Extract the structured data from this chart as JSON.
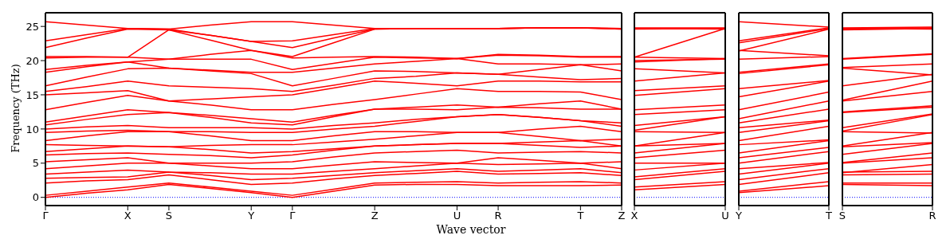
{
  "chart_data": [
    {
      "type": "line",
      "ylabel": "Frequency (THz)",
      "xlabel": "Wave vector",
      "ylim": [
        -1.2,
        27
      ],
      "yticks": [
        0,
        5,
        10,
        15,
        20,
        25
      ],
      "categories": [
        "Γ",
        null,
        "X",
        "S",
        null,
        "Y",
        "Γ",
        null,
        "Z",
        null,
        "U",
        "R",
        null,
        "T",
        "Z"
      ],
      "marker": "none",
      "line_style": "solid",
      "ref_lines": [
        {
          "axis": "y",
          "value": 0,
          "color": "#0000ff",
          "line_style": "dotted"
        }
      ],
      "series": [
        {
          "color": "#ff0000",
          "values": [
            0,
            0.6,
            1.1,
            1.9,
            1.3,
            0.7,
            0,
            0.9,
            1.8,
            1.9,
            1.9,
            1.7,
            1.7,
            1.7,
            1.8
          ]
        },
        {
          "color": "#ff0000",
          "values": [
            0.3,
            0.9,
            1.5,
            2.1,
            1.5,
            0.9,
            0.3,
            1.2,
            2.1,
            2.2,
            2.3,
            2.1,
            2.2,
            2.3,
            2.1
          ]
        },
        {
          "color": "#ff0000",
          "values": [
            2.1,
            2.4,
            2.6,
            3.3,
            2.6,
            1.9,
            2.1,
            2.7,
            3.2,
            3.5,
            3.8,
            3.4,
            3.5,
            3.6,
            3.2
          ]
        },
        {
          "color": "#ff0000",
          "values": [
            2.8,
            2.9,
            3.0,
            3.7,
            3.2,
            2.6,
            2.8,
            3.2,
            3.6,
            3.9,
            4.2,
            3.8,
            4.0,
            4.2,
            3.6
          ]
        },
        {
          "color": "#ff0000",
          "values": [
            3.4,
            3.7,
            4.0,
            3.7,
            3.6,
            3.4,
            3.4,
            3.8,
            4.2,
            4.6,
            5.0,
            4.8,
            4.9,
            5.0,
            4.2
          ]
        },
        {
          "color": "#ff0000",
          "values": [
            4.2,
            4.6,
            5.0,
            5.0,
            4.6,
            4.2,
            4.2,
            4.7,
            5.2,
            5.1,
            5.0,
            5.8,
            5.4,
            5.0,
            5.2
          ]
        },
        {
          "color": "#ff0000",
          "values": [
            5.2,
            5.5,
            5.8,
            5.0,
            5.0,
            5.0,
            5.2,
            5.9,
            6.5,
            6.7,
            6.9,
            6.5,
            6.6,
            6.7,
            6.5
          ]
        },
        {
          "color": "#ff0000",
          "values": [
            6.2,
            6.4,
            6.5,
            6.3,
            6.1,
            5.8,
            6.2,
            6.9,
            7.5,
            7.7,
            7.9,
            7.9,
            7.6,
            7.3,
            7.5
          ]
        },
        {
          "color": "#ff0000",
          "values": [
            6.7,
            7.1,
            7.5,
            7.4,
            7.0,
            6.5,
            6.7,
            7.1,
            7.5,
            7.7,
            7.9,
            7.9,
            8.1,
            8.3,
            7.5
          ]
        },
        {
          "color": "#ff0000",
          "values": [
            7.7,
            7.6,
            7.5,
            7.4,
            7.6,
            7.7,
            7.7,
            8.1,
            8.5,
            9.0,
            9.5,
            9.5,
            8.9,
            8.3,
            8.5
          ]
        },
        {
          "color": "#ff0000",
          "values": [
            8.3,
            9.0,
            9.6,
            9.6,
            9.0,
            8.3,
            8.3,
            9.0,
            9.6,
            9.6,
            9.5,
            9.5,
            10.0,
            10.4,
            9.6
          ]
        },
        {
          "color": "#ff0000",
          "values": [
            9.5,
            9.7,
            9.8,
            9.6,
            9.6,
            9.5,
            9.5,
            10.0,
            10.4,
            11.1,
            11.8,
            12.1,
            11.7,
            11.2,
            10.4
          ]
        },
        {
          "color": "#ff0000",
          "values": [
            10.0,
            10.3,
            10.5,
            10.2,
            10.2,
            10.2,
            10.0,
            10.5,
            10.9,
            11.4,
            11.8,
            12.1,
            11.7,
            11.2,
            10.9
          ]
        },
        {
          "color": "#ff0000",
          "values": [
            10.6,
            11.4,
            12.1,
            12.4,
            11.7,
            10.9,
            10.6,
            11.8,
            12.9,
            12.9,
            12.8,
            13.2,
            13.1,
            12.9,
            12.9
          ]
        },
        {
          "color": "#ff0000",
          "values": [
            11.0,
            11.9,
            12.8,
            12.4,
            12.0,
            11.5,
            11.0,
            12.0,
            12.9,
            13.2,
            13.5,
            13.2,
            13.7,
            14.1,
            12.9
          ]
        },
        {
          "color": "#ff0000",
          "values": [
            12.8,
            13.9,
            14.9,
            14.1,
            13.5,
            12.8,
            12.8,
            13.6,
            14.3,
            15.1,
            15.9,
            15.5,
            15.5,
            15.4,
            14.3
          ]
        },
        {
          "color": "#ff0000",
          "values": [
            15.0,
            15.3,
            15.6,
            14.1,
            14.4,
            14.7,
            15.0,
            16.0,
            17.0,
            16.7,
            16.3,
            17.0,
            17.0,
            16.9,
            16.9
          ]
        },
        {
          "color": "#ff0000",
          "values": [
            15.5,
            16.2,
            17.0,
            16.3,
            16.1,
            15.9,
            15.5,
            16.4,
            17.4,
            17.7,
            18.2,
            18.0,
            17.6,
            17.2,
            17.4
          ]
        },
        {
          "color": "#ff0000",
          "values": [
            16.3,
            17.6,
            18.8,
            18.9,
            18.5,
            18.1,
            16.3,
            17.4,
            18.5,
            18.4,
            18.2,
            18.0,
            18.7,
            19.4,
            18.5
          ]
        },
        {
          "color": "#ff0000",
          "values": [
            18.3,
            19.1,
            19.8,
            18.9,
            18.6,
            18.3,
            18.3,
            18.9,
            19.5,
            19.9,
            20.3,
            19.5,
            19.5,
            19.4,
            19.5
          ]
        },
        {
          "color": "#ff0000",
          "values": [
            18.7,
            19.3,
            19.8,
            20.2,
            20.2,
            20.2,
            18.7,
            19.6,
            20.5,
            20.4,
            20.3,
            20.8,
            20.7,
            20.5,
            20.5
          ]
        },
        {
          "color": "#ff0000",
          "values": [
            20.4,
            20.5,
            20.5,
            20.2,
            20.9,
            21.5,
            20.4,
            20.5,
            20.6,
            20.5,
            20.3,
            20.9,
            20.8,
            20.6,
            20.6
          ]
        },
        {
          "color": "#ff0000",
          "values": [
            20.6,
            20.6,
            20.5,
            24.5,
            23.0,
            21.5,
            20.6,
            22.6,
            24.6,
            24.7,
            24.7,
            24.7,
            24.8,
            24.8,
            24.6
          ]
        },
        {
          "color": "#ff0000",
          "values": [
            21.9,
            23.3,
            24.6,
            24.5,
            23.7,
            22.8,
            21.9,
            23.3,
            24.6,
            24.7,
            24.7,
            24.7,
            24.8,
            24.8,
            24.6
          ]
        },
        {
          "color": "#ff0000",
          "values": [
            22.9,
            23.8,
            24.7,
            24.6,
            23.7,
            22.8,
            22.9,
            23.8,
            24.7,
            24.7,
            24.7,
            24.7,
            24.8,
            24.8,
            24.7
          ]
        },
        {
          "color": "#ff0000",
          "values": [
            25.7,
            25.2,
            24.7,
            24.6,
            25.2,
            25.7,
            25.7,
            25.2,
            24.7,
            24.7,
            24.7,
            24.7,
            24.8,
            24.8,
            24.7
          ]
        }
      ]
    },
    {
      "type": "line",
      "ylim": [
        -1.2,
        27
      ],
      "yticks": [
        0,
        5,
        10,
        15,
        20,
        25
      ],
      "categories": [
        "X",
        "U"
      ],
      "tick_labels": "x",
      "marker": "none",
      "line_style": "solid",
      "ref_lines": [
        {
          "axis": "y",
          "value": 0,
          "color": "#0000ff",
          "line_style": "dotted"
        }
      ],
      "series": [
        {
          "color": "#ff0000",
          "values": [
            1.1,
            1.9
          ]
        },
        {
          "color": "#ff0000",
          "values": [
            1.5,
            2.3
          ]
        },
        {
          "color": "#ff0000",
          "values": [
            2.6,
            3.8
          ]
        },
        {
          "color": "#ff0000",
          "values": [
            3.0,
            4.2
          ]
        },
        {
          "color": "#ff0000",
          "values": [
            4.0,
            5.0
          ]
        },
        {
          "color": "#ff0000",
          "values": [
            5.0,
            5.0
          ]
        },
        {
          "color": "#ff0000",
          "values": [
            5.8,
            6.9
          ]
        },
        {
          "color": "#ff0000",
          "values": [
            6.5,
            7.9
          ]
        },
        {
          "color": "#ff0000",
          "values": [
            7.5,
            7.9
          ]
        },
        {
          "color": "#ff0000",
          "values": [
            7.5,
            9.5
          ]
        },
        {
          "color": "#ff0000",
          "values": [
            9.6,
            9.5
          ]
        },
        {
          "color": "#ff0000",
          "values": [
            9.8,
            11.8
          ]
        },
        {
          "color": "#ff0000",
          "values": [
            10.5,
            11.8
          ]
        },
        {
          "color": "#ff0000",
          "values": [
            12.1,
            12.8
          ]
        },
        {
          "color": "#ff0000",
          "values": [
            12.8,
            13.5
          ]
        },
        {
          "color": "#ff0000",
          "values": [
            14.9,
            15.9
          ]
        },
        {
          "color": "#ff0000",
          "values": [
            15.6,
            16.3
          ]
        },
        {
          "color": "#ff0000",
          "values": [
            17.0,
            18.2
          ]
        },
        {
          "color": "#ff0000",
          "values": [
            18.8,
            18.2
          ]
        },
        {
          "color": "#ff0000",
          "values": [
            19.8,
            20.3
          ]
        },
        {
          "color": "#ff0000",
          "values": [
            20.0,
            20.2
          ]
        },
        {
          "color": "#ff0000",
          "values": [
            20.5,
            20.3
          ]
        },
        {
          "color": "#ff0000",
          "values": [
            20.5,
            24.7
          ]
        },
        {
          "color": "#ff0000",
          "values": [
            24.6,
            24.7
          ]
        },
        {
          "color": "#ff0000",
          "values": [
            24.7,
            24.6
          ]
        },
        {
          "color": "#ff0000",
          "values": [
            24.8,
            24.8
          ]
        }
      ]
    },
    {
      "type": "line",
      "ylim": [
        -1.2,
        27
      ],
      "yticks": [
        0,
        5,
        10,
        15,
        20,
        25
      ],
      "categories": [
        "Y",
        "T"
      ],
      "tick_labels": "x",
      "marker": "none",
      "line_style": "solid",
      "ref_lines": [
        {
          "axis": "y",
          "value": 0,
          "color": "#0000ff",
          "line_style": "dotted"
        }
      ],
      "series": [
        {
          "color": "#ff0000",
          "values": [
            0.7,
            1.7
          ]
        },
        {
          "color": "#ff0000",
          "values": [
            0.9,
            2.3
          ]
        },
        {
          "color": "#ff0000",
          "values": [
            1.9,
            3.6
          ]
        },
        {
          "color": "#ff0000",
          "values": [
            2.6,
            4.2
          ]
        },
        {
          "color": "#ff0000",
          "values": [
            3.4,
            5.0
          ]
        },
        {
          "color": "#ff0000",
          "values": [
            4.2,
            5.1
          ]
        },
        {
          "color": "#ff0000",
          "values": [
            5.0,
            6.7
          ]
        },
        {
          "color": "#ff0000",
          "values": [
            5.8,
            7.3
          ]
        },
        {
          "color": "#ff0000",
          "values": [
            6.5,
            8.3
          ]
        },
        {
          "color": "#ff0000",
          "values": [
            7.7,
            8.4
          ]
        },
        {
          "color": "#ff0000",
          "values": [
            8.3,
            10.4
          ]
        },
        {
          "color": "#ff0000",
          "values": [
            9.5,
            11.2
          ]
        },
        {
          "color": "#ff0000",
          "values": [
            10.2,
            11.3
          ]
        },
        {
          "color": "#ff0000",
          "values": [
            10.9,
            12.9
          ]
        },
        {
          "color": "#ff0000",
          "values": [
            11.5,
            14.1
          ]
        },
        {
          "color": "#ff0000",
          "values": [
            12.8,
            15.4
          ]
        },
        {
          "color": "#ff0000",
          "values": [
            14.7,
            17.0
          ]
        },
        {
          "color": "#ff0000",
          "values": [
            15.9,
            17.1
          ]
        },
        {
          "color": "#ff0000",
          "values": [
            18.1,
            19.4
          ]
        },
        {
          "color": "#ff0000",
          "values": [
            18.3,
            19.5
          ]
        },
        {
          "color": "#ff0000",
          "values": [
            20.2,
            20.6
          ]
        },
        {
          "color": "#ff0000",
          "values": [
            21.5,
            20.7
          ]
        },
        {
          "color": "#ff0000",
          "values": [
            21.4,
            24.6
          ]
        },
        {
          "color": "#ff0000",
          "values": [
            22.6,
            24.7
          ]
        },
        {
          "color": "#ff0000",
          "values": [
            22.9,
            24.8
          ]
        },
        {
          "color": "#ff0000",
          "values": [
            25.7,
            24.9
          ]
        }
      ]
    },
    {
      "type": "line",
      "ylim": [
        -1.2,
        27
      ],
      "yticks": [
        0,
        5,
        10,
        15,
        20,
        25
      ],
      "categories": [
        "S",
        "R"
      ],
      "tick_labels": "x",
      "marker": "none",
      "line_style": "solid",
      "ref_lines": [
        {
          "axis": "y",
          "value": 0,
          "color": "#0000ff",
          "line_style": "dotted"
        }
      ],
      "series": [
        {
          "color": "#ff0000",
          "values": [
            1.9,
            1.7
          ]
        },
        {
          "color": "#ff0000",
          "values": [
            2.1,
            2.1
          ]
        },
        {
          "color": "#ff0000",
          "values": [
            3.3,
            3.4
          ]
        },
        {
          "color": "#ff0000",
          "values": [
            3.7,
            3.8
          ]
        },
        {
          "color": "#ff0000",
          "values": [
            3.6,
            4.8
          ]
        },
        {
          "color": "#ff0000",
          "values": [
            5.0,
            5.8
          ]
        },
        {
          "color": "#ff0000",
          "values": [
            5.1,
            6.5
          ]
        },
        {
          "color": "#ff0000",
          "values": [
            6.3,
            7.9
          ]
        },
        {
          "color": "#ff0000",
          "values": [
            7.4,
            8.0
          ]
        },
        {
          "color": "#ff0000",
          "values": [
            7.5,
            9.5
          ]
        },
        {
          "color": "#ff0000",
          "values": [
            9.6,
            9.4
          ]
        },
        {
          "color": "#ff0000",
          "values": [
            9.7,
            12.1
          ]
        },
        {
          "color": "#ff0000",
          "values": [
            10.2,
            12.2
          ]
        },
        {
          "color": "#ff0000",
          "values": [
            12.4,
            13.2
          ]
        },
        {
          "color": "#ff0000",
          "values": [
            12.5,
            13.4
          ]
        },
        {
          "color": "#ff0000",
          "values": [
            14.1,
            15.5
          ]
        },
        {
          "color": "#ff0000",
          "values": [
            14.2,
            17.0
          ]
        },
        {
          "color": "#ff0000",
          "values": [
            16.3,
            18.0
          ]
        },
        {
          "color": "#ff0000",
          "values": [
            18.9,
            17.9
          ]
        },
        {
          "color": "#ff0000",
          "values": [
            19.0,
            19.5
          ]
        },
        {
          "color": "#ff0000",
          "values": [
            20.2,
            20.9
          ]
        },
        {
          "color": "#ff0000",
          "values": [
            20.3,
            21.0
          ]
        },
        {
          "color": "#ff0000",
          "values": [
            24.5,
            24.7
          ]
        },
        {
          "color": "#ff0000",
          "values": [
            24.6,
            24.8
          ]
        },
        {
          "color": "#ff0000",
          "values": [
            24.7,
            24.6
          ]
        },
        {
          "color": "#ff0000",
          "values": [
            24.8,
            24.9
          ]
        }
      ]
    }
  ]
}
